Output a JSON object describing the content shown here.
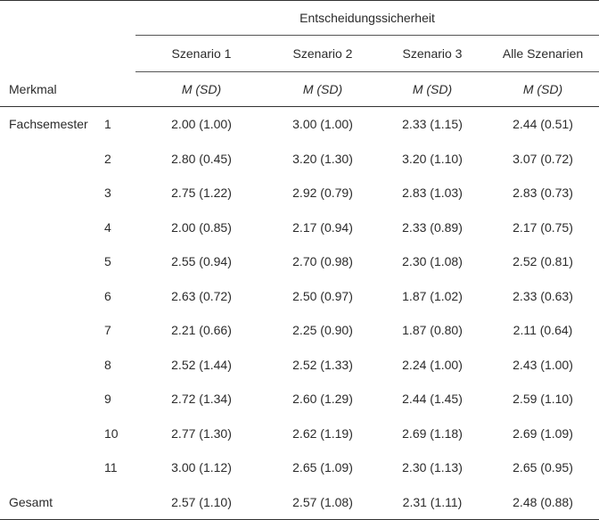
{
  "table": {
    "group_header": "Entscheidungssicherheit",
    "feature_header": "Merkmal",
    "scenario_headers": [
      "Szenario 1",
      "Szenario 2",
      "Szenario 3",
      "Alle Szenarien"
    ],
    "stat_headers": [
      "M (SD)",
      "M (SD)",
      "M (SD)",
      "M (SD)"
    ],
    "rows": [
      {
        "feature": "Fachsemester",
        "sub": "1",
        "s1": "2.00 (1.00)",
        "s2": "3.00 (1.00)",
        "s3": "2.33 (1.15)",
        "all": "2.44 (0.51)"
      },
      {
        "feature": "",
        "sub": "2",
        "s1": "2.80 (0.45)",
        "s2": "3.20 (1.30)",
        "s3": "3.20 (1.10)",
        "all": "3.07 (0.72)"
      },
      {
        "feature": "",
        "sub": "3",
        "s1": "2.75 (1.22)",
        "s2": "2.92 (0.79)",
        "s3": "2.83 (1.03)",
        "all": "2.83 (0.73)"
      },
      {
        "feature": "",
        "sub": "4",
        "s1": "2.00 (0.85)",
        "s2": "2.17 (0.94)",
        "s3": "2.33 (0.89)",
        "all": "2.17 (0.75)"
      },
      {
        "feature": "",
        "sub": "5",
        "s1": "2.55 (0.94)",
        "s2": "2.70 (0.98)",
        "s3": "2.30 (1.08)",
        "all": "2.52 (0.81)"
      },
      {
        "feature": "",
        "sub": "6",
        "s1": "2.63 (0.72)",
        "s2": "2.50 (0.97)",
        "s3": "1.87 (1.02)",
        "all": "2.33 (0.63)"
      },
      {
        "feature": "",
        "sub": "7",
        "s1": "2.21 (0.66)",
        "s2": "2.25 (0.90)",
        "s3": "1.87 (0.80)",
        "all": "2.11 (0.64)"
      },
      {
        "feature": "",
        "sub": "8",
        "s1": "2.52 (1.44)",
        "s2": "2.52 (1.33)",
        "s3": "2.24 (1.00)",
        "all": "2.43 (1.00)"
      },
      {
        "feature": "",
        "sub": "9",
        "s1": "2.72 (1.34)",
        "s2": "2.60 (1.29)",
        "s3": "2.44 (1.45)",
        "all": "2.59 (1.10)"
      },
      {
        "feature": "",
        "sub": "10",
        "s1": "2.77 (1.30)",
        "s2": "2.62 (1.19)",
        "s3": "2.69 (1.18)",
        "all": "2.69 (1.09)"
      },
      {
        "feature": "",
        "sub": "11",
        "s1": "3.00 (1.12)",
        "s2": "2.65 (1.09)",
        "s3": "2.30 (1.13)",
        "all": "2.65 (0.95)"
      }
    ],
    "total": {
      "feature": "Gesamt",
      "sub": "",
      "s1": "2.57 (1.10)",
      "s2": "2.57 (1.08)",
      "s3": "2.31 (1.11)",
      "all": "2.48 (0.88)"
    }
  }
}
